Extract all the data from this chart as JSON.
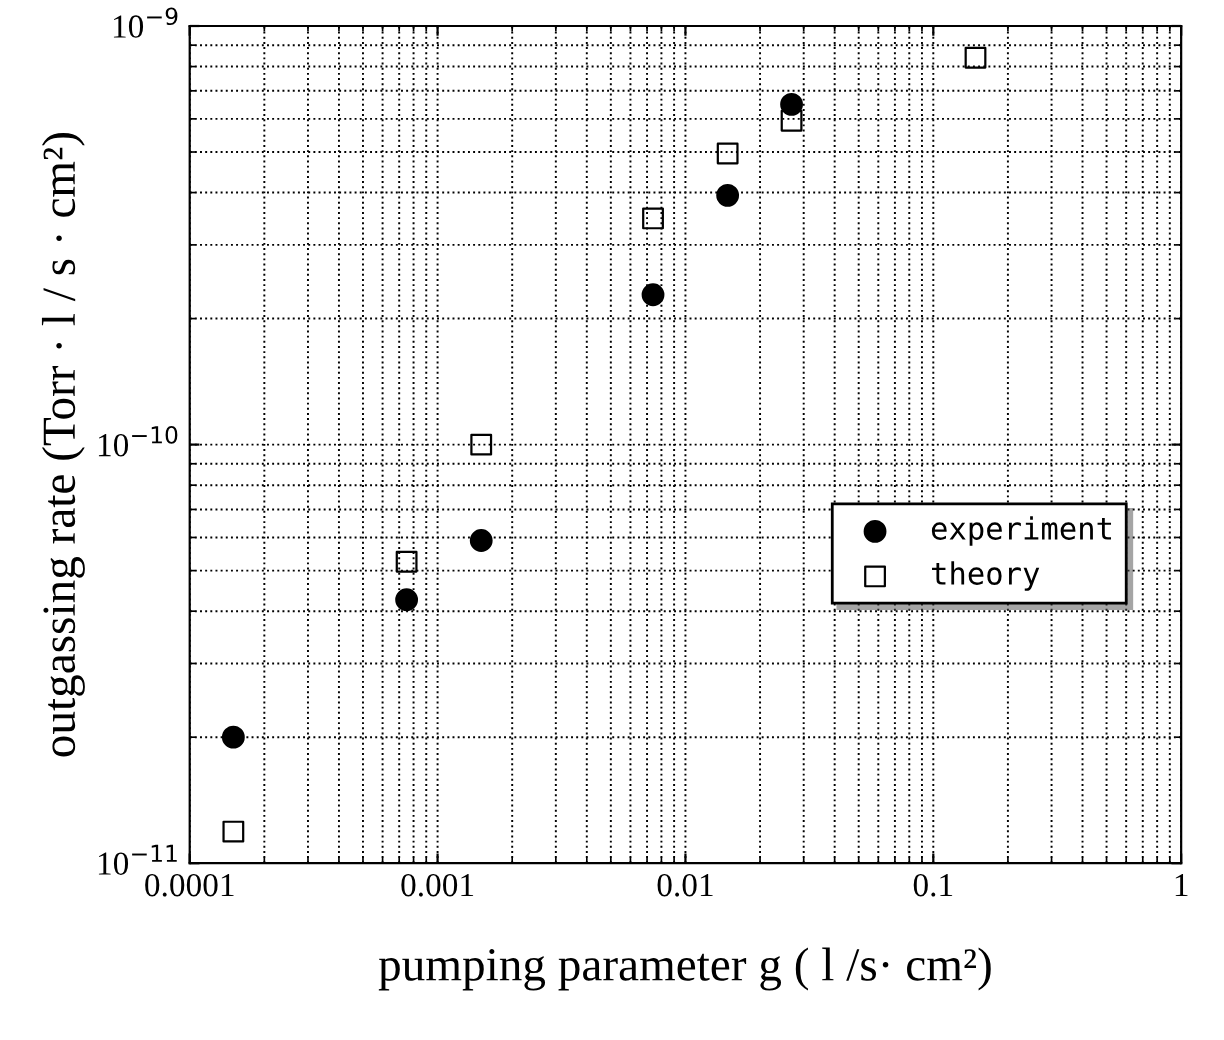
{
  "chart_data": {
    "type": "scatter",
    "xlabel": "pumping parameter g ( l /s· cm²)",
    "ylabel": "outgassing rate (Torr · l / s · cm²)",
    "log": "xy",
    "grid": true,
    "legend": "right",
    "xlim": [
      0.0001,
      1
    ],
    "xticks": [
      0.0001,
      0.001,
      0.01,
      0.1,
      1
    ],
    "ylim": [
      1e-11,
      1e-09
    ],
    "yticks": [
      {
        "value": 1e-11,
        "label": "10$^{−11}$"
      },
      {
        "value": 1e-10,
        "label": "10$^{−10}$"
      },
      {
        "value": 1e-09,
        "label": "10$^{−9}$"
      }
    ],
    "series": [
      {
        "name": "experiment",
        "color": "#000000",
        "marker": "circle",
        "x": [
          0.00015,
          0.00075,
          0.0015,
          0.0074,
          0.0148,
          0.0268
        ],
        "values": [
          2e-11,
          4.26e-11,
          5.9e-11,
          2.28e-10,
          3.94e-10,
          6.5e-10
        ]
      },
      {
        "name": "theory",
        "color": "#000000",
        "marker": "square",
        "x": [
          0.00015,
          0.00075,
          0.0015,
          0.0074,
          0.0148,
          0.0268,
          0.148
        ],
        "values": [
          1.19e-11,
          5.25e-11,
          1e-10,
          3.47e-10,
          4.96e-10,
          5.94e-10,
          8.4e-10
        ]
      }
    ]
  }
}
